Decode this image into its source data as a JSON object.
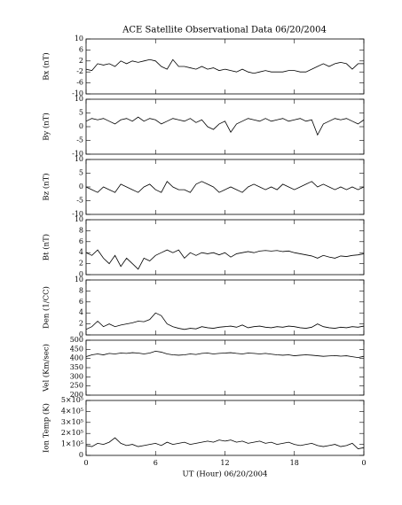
{
  "chart_data": [
    {
      "type": "line",
      "title": "ACE Satellite Observational Data   06/20/2004",
      "ylabel": "Bx (nT)",
      "color": "#000000",
      "xlim": [
        0,
        24
      ],
      "xticks": [
        0,
        6,
        12,
        18,
        {
          "value": 24,
          "label": "0"
        }
      ],
      "ylim": [
        -10,
        10
      ],
      "yticks": [
        -10,
        -6,
        -2,
        2,
        6,
        10
      ],
      "x": [
        0,
        0.5,
        1,
        1.5,
        2,
        2.5,
        3,
        3.5,
        4,
        4.5,
        5,
        5.5,
        6,
        6.5,
        7,
        7.5,
        8,
        8.5,
        9,
        9.5,
        10,
        10.5,
        11,
        11.5,
        12,
        12.5,
        13,
        13.5,
        14,
        14.5,
        15,
        15.5,
        16,
        16.5,
        17,
        17.5,
        18,
        18.5,
        19,
        19.5,
        20,
        20.5,
        21,
        21.5,
        22,
        22.5,
        23,
        23.5,
        24
      ],
      "values": [
        -1,
        -1.5,
        1,
        0.5,
        1,
        0,
        2,
        1,
        2,
        1.5,
        2,
        2.5,
        2,
        0,
        -1,
        2.5,
        0,
        0,
        -0.5,
        -1,
        0,
        -1,
        -0.5,
        -1.5,
        -1,
        -1.5,
        -2,
        -1,
        -2,
        -2.5,
        -2,
        -1.5,
        -2,
        -2,
        -2,
        -1.5,
        -1.5,
        -2,
        -2,
        -1,
        0,
        1,
        0,
        1,
        1.5,
        1,
        -1,
        1,
        1
      ]
    },
    {
      "type": "line",
      "ylabel": "By (nT)",
      "color": "#000000",
      "xlim": [
        0,
        24
      ],
      "xticks": [
        0,
        6,
        12,
        18,
        24
      ],
      "ylim": [
        -10,
        10
      ],
      "yticks": [
        -10,
        -5,
        0,
        5,
        10
      ],
      "x": [
        0,
        0.5,
        1,
        1.5,
        2,
        2.5,
        3,
        3.5,
        4,
        4.5,
        5,
        5.5,
        6,
        6.5,
        7,
        7.5,
        8,
        8.5,
        9,
        9.5,
        10,
        10.5,
        11,
        11.5,
        12,
        12.5,
        13,
        13.5,
        14,
        14.5,
        15,
        15.5,
        16,
        16.5,
        17,
        17.5,
        18,
        18.5,
        19,
        19.5,
        20,
        20.5,
        21,
        21.5,
        22,
        22.5,
        23,
        23.5,
        24
      ],
      "values": [
        2,
        3,
        2.5,
        3,
        2,
        1,
        2.5,
        3,
        2,
        3.5,
        2,
        3,
        2.5,
        1,
        2,
        3,
        2.5,
        2,
        3,
        1.5,
        2.5,
        0,
        -1,
        1,
        2,
        -2,
        1,
        2,
        3,
        2.5,
        2,
        3,
        2,
        2.5,
        3,
        2,
        2.5,
        3,
        2,
        2.5,
        -3,
        1,
        2,
        3,
        2.5,
        3,
        2,
        1,
        2.5
      ]
    },
    {
      "type": "line",
      "ylabel": "Bz (nT)",
      "color": "#000000",
      "xlim": [
        0,
        24
      ],
      "xticks": [
        0,
        6,
        12,
        18,
        24
      ],
      "ylim": [
        -10,
        10
      ],
      "yticks": [
        -10,
        -5,
        0,
        5,
        10
      ],
      "x": [
        0,
        0.5,
        1,
        1.5,
        2,
        2.5,
        3,
        3.5,
        4,
        4.5,
        5,
        5.5,
        6,
        6.5,
        7,
        7.5,
        8,
        8.5,
        9,
        9.5,
        10,
        10.5,
        11,
        11.5,
        12,
        12.5,
        13,
        13.5,
        14,
        14.5,
        15,
        15.5,
        16,
        16.5,
        17,
        17.5,
        18,
        18.5,
        19,
        19.5,
        20,
        20.5,
        21,
        21.5,
        22,
        22.5,
        23,
        23.5,
        24
      ],
      "values": [
        0,
        -1,
        -2,
        0,
        -1,
        -2,
        1,
        0,
        -1,
        -2,
        0,
        1,
        -1,
        -2,
        2,
        0,
        -1,
        -1,
        -2,
        1,
        2,
        1,
        0,
        -2,
        -1,
        0,
        -1,
        -2,
        0,
        1,
        0,
        -1,
        0,
        -1,
        1,
        0,
        -1,
        0,
        1,
        2,
        0,
        1,
        0,
        -1,
        0,
        -1,
        0,
        -1,
        0
      ]
    },
    {
      "type": "line",
      "ylabel": "Bt (nT)",
      "color": "#000000",
      "xlim": [
        0,
        24
      ],
      "xticks": [
        0,
        6,
        12,
        18,
        24
      ],
      "ylim": [
        0,
        10
      ],
      "yticks": [
        0,
        2,
        4,
        6,
        8,
        10
      ],
      "x": [
        0,
        0.5,
        1,
        1.5,
        2,
        2.5,
        3,
        3.5,
        4,
        4.5,
        5,
        5.5,
        6,
        6.5,
        7,
        7.5,
        8,
        8.5,
        9,
        9.5,
        10,
        10.5,
        11,
        11.5,
        12,
        12.5,
        13,
        13.5,
        14,
        14.5,
        15,
        15.5,
        16,
        16.5,
        17,
        17.5,
        18,
        18.5,
        19,
        19.5,
        20,
        20.5,
        21,
        21.5,
        22,
        22.5,
        23,
        23.5,
        24
      ],
      "values": [
        4,
        3.5,
        4.5,
        3,
        2,
        3.5,
        1.5,
        3,
        2,
        1,
        3,
        2.5,
        3.5,
        4,
        4.5,
        4,
        4.5,
        3,
        4,
        3.5,
        4,
        3.8,
        4,
        3.6,
        4,
        3.2,
        3.8,
        4,
        4.2,
        4,
        4.3,
        4.4,
        4.3,
        4.4,
        4.2,
        4.3,
        4,
        3.8,
        3.6,
        3.4,
        3,
        3.5,
        3.2,
        3,
        3.4,
        3.3,
        3.5,
        3.6,
        3.8
      ]
    },
    {
      "type": "line",
      "ylabel": "Den (1/CC)",
      "color": "#000000",
      "xlim": [
        0,
        24
      ],
      "xticks": [
        0,
        6,
        12,
        18,
        24
      ],
      "ylim": [
        0,
        10
      ],
      "yticks": [
        0,
        2,
        4,
        6,
        8,
        10
      ],
      "x": [
        0,
        0.5,
        1,
        1.5,
        2,
        2.5,
        3,
        3.5,
        4,
        4.5,
        5,
        5.5,
        6,
        6.5,
        7,
        7.5,
        8,
        8.5,
        9,
        9.5,
        10,
        10.5,
        11,
        11.5,
        12,
        12.5,
        13,
        13.5,
        14,
        14.5,
        15,
        15.5,
        16,
        16.5,
        17,
        17.5,
        18,
        18.5,
        19,
        19.5,
        20,
        20.5,
        21,
        21.5,
        22,
        22.5,
        23,
        23.5,
        24
      ],
      "values": [
        1,
        1.5,
        2.5,
        1.5,
        2,
        1.5,
        1.8,
        2,
        2.2,
        2.5,
        2.4,
        2.8,
        4,
        3.5,
        2,
        1.5,
        1.2,
        1,
        1.2,
        1.1,
        1.5,
        1.3,
        1.2,
        1.4,
        1.5,
        1.6,
        1.4,
        1.8,
        1.3,
        1.5,
        1.6,
        1.4,
        1.3,
        1.5,
        1.4,
        1.6,
        1.5,
        1.3,
        1.2,
        1.4,
        2,
        1.5,
        1.3,
        1.2,
        1.4,
        1.3,
        1.5,
        1.4,
        1.6
      ]
    },
    {
      "type": "line",
      "ylabel": "Vel (Km/sec)",
      "color": "#000000",
      "xlim": [
        0,
        24
      ],
      "xticks": [
        0,
        6,
        12,
        18,
        24
      ],
      "ylim": [
        200,
        500
      ],
      "yticks": [
        200,
        250,
        300,
        350,
        400,
        450,
        500
      ],
      "x": [
        0,
        0.5,
        1,
        1.5,
        2,
        2.5,
        3,
        3.5,
        4,
        4.5,
        5,
        5.5,
        6,
        6.5,
        7,
        7.5,
        8,
        8.5,
        9,
        9.5,
        10,
        10.5,
        11,
        11.5,
        12,
        12.5,
        13,
        13.5,
        14,
        14.5,
        15,
        15.5,
        16,
        16.5,
        17,
        17.5,
        18,
        18.5,
        19,
        19.5,
        20,
        20.5,
        21,
        21.5,
        22,
        22.5,
        23,
        23.5,
        24
      ],
      "values": [
        410,
        420,
        425,
        420,
        428,
        425,
        430,
        428,
        432,
        430,
        425,
        430,
        440,
        435,
        425,
        420,
        418,
        420,
        425,
        422,
        428,
        430,
        425,
        428,
        430,
        432,
        428,
        425,
        430,
        428,
        425,
        428,
        424,
        420,
        418,
        420,
        415,
        418,
        420,
        418,
        415,
        412,
        414,
        416,
        413,
        415,
        410,
        405,
        412
      ]
    },
    {
      "type": "line",
      "ylabel": "Ion Temp (K)",
      "xlabel": "UT (Hour)   06/20/2004",
      "color": "#000000",
      "xlim": [
        0,
        24
      ],
      "xticks": [
        0,
        6,
        12,
        18,
        {
          "value": 24,
          "label": "0"
        }
      ],
      "ylim": [
        0,
        500000
      ],
      "yticks": [
        0,
        {
          "value": 100000,
          "label": "1×10⁵"
        },
        {
          "value": 200000,
          "label": "2×10⁵"
        },
        {
          "value": 300000,
          "label": "3×10⁵"
        },
        {
          "value": 400000,
          "label": "4×10⁵"
        },
        {
          "value": 500000,
          "label": "5×10⁵"
        }
      ],
      "x": [
        0,
        0.5,
        1,
        1.5,
        2,
        2.5,
        3,
        3.5,
        4,
        4.5,
        5,
        5.5,
        6,
        6.5,
        7,
        7.5,
        8,
        8.5,
        9,
        9.5,
        10,
        10.5,
        11,
        11.5,
        12,
        12.5,
        13,
        13.5,
        14,
        14.5,
        15,
        15.5,
        16,
        16.5,
        17,
        17.5,
        18,
        18.5,
        19,
        19.5,
        20,
        20.5,
        21,
        21.5,
        22,
        22.5,
        23,
        23.5,
        24
      ],
      "values": [
        90000,
        80000,
        110000,
        100000,
        120000,
        160000,
        110000,
        90000,
        100000,
        80000,
        90000,
        100000,
        110000,
        90000,
        120000,
        100000,
        110000,
        120000,
        100000,
        110000,
        120000,
        130000,
        120000,
        140000,
        130000,
        140000,
        120000,
        130000,
        110000,
        120000,
        130000,
        110000,
        120000,
        100000,
        110000,
        120000,
        100000,
        90000,
        100000,
        110000,
        90000,
        80000,
        90000,
        100000,
        80000,
        90000,
        110000,
        60000,
        70000
      ]
    }
  ]
}
